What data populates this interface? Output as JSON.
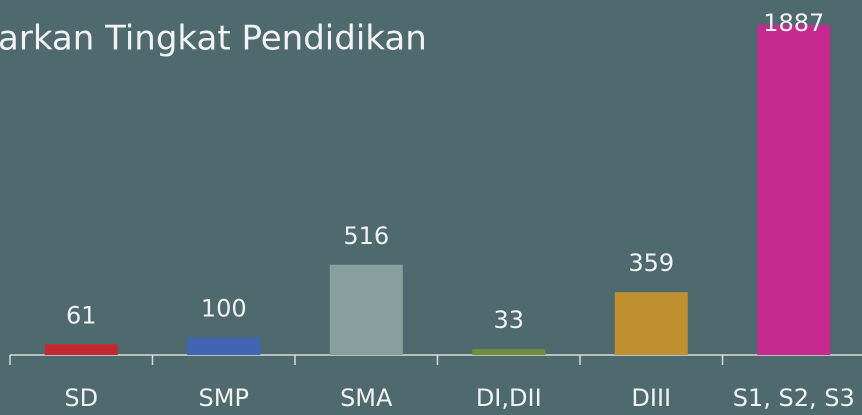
{
  "chart_data": {
    "type": "bar",
    "title": "arkan Tingkat Pendidikan",
    "categories": [
      "SD",
      "SMP",
      "SMA",
      "DI,DII",
      "DIII",
      "S1, S2, S3"
    ],
    "values": [
      61,
      100,
      516,
      33,
      359,
      1887
    ],
    "colors": [
      "#c0282b",
      "#4264b2",
      "#87a09e",
      "#6f8f3d",
      "#c09130",
      "#c62a8f"
    ]
  }
}
